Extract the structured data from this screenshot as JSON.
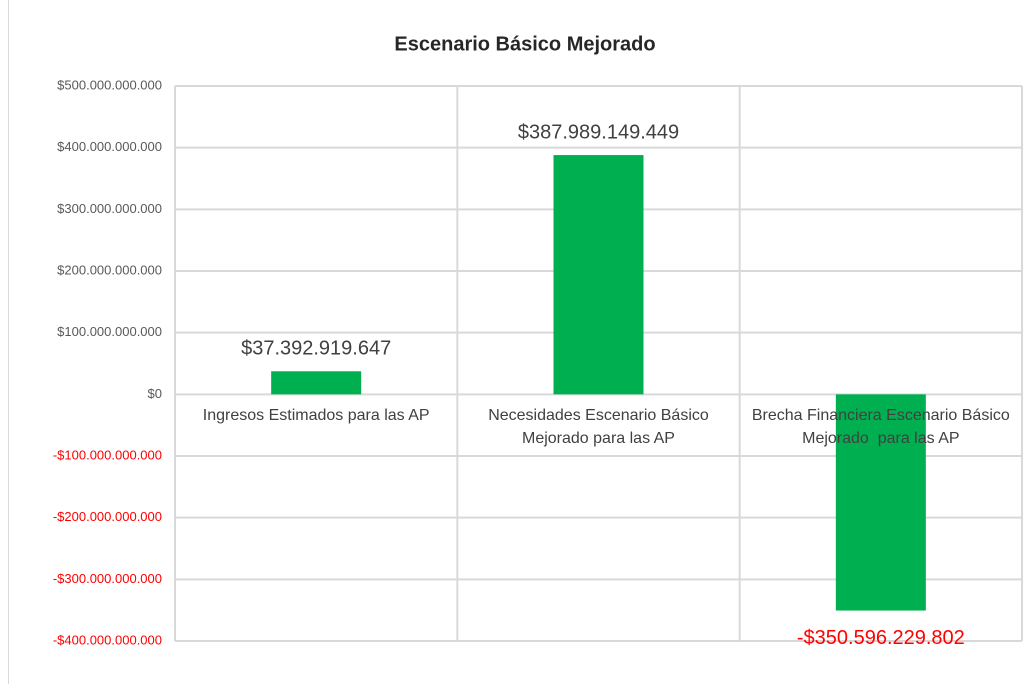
{
  "chart_data": {
    "type": "bar",
    "title": "Escenario Básico Mejorado",
    "categories": [
      "Ingresos Estimados para las AP",
      "Necesidades Escenario Básico Mejorado para las AP",
      "Brecha Financiera Escenario Básico Mejorado  para las AP"
    ],
    "values": [
      37392919647,
      387989149449,
      -350596229802
    ],
    "value_labels": [
      "$37.392.919.647",
      "$387.989.149.449",
      "-$350.596.229.802"
    ],
    "color": "#00b050",
    "negative_label_color": "#ff0000",
    "ylim": [
      -400000000000,
      500000000000
    ],
    "yticks": [
      {
        "value": -400000000000,
        "label": "-$400.000.000.000"
      },
      {
        "value": -300000000000,
        "label": "-$300.000.000.000"
      },
      {
        "value": -200000000000,
        "label": "-$200.000.000.000"
      },
      {
        "value": -100000000000,
        "label": "-$100.000.000.000"
      },
      {
        "value": 0,
        "label": "$0"
      },
      {
        "value": 100000000000,
        "label": "$100.000.000.000"
      },
      {
        "value": 200000000000,
        "label": "$200.000.000.000"
      },
      {
        "value": 300000000000,
        "label": "$300.000.000.000"
      },
      {
        "value": 400000000000,
        "label": "$400.000.000.000"
      },
      {
        "value": 500000000000,
        "label": "$500.000.000.000"
      }
    ],
    "grid": true
  }
}
